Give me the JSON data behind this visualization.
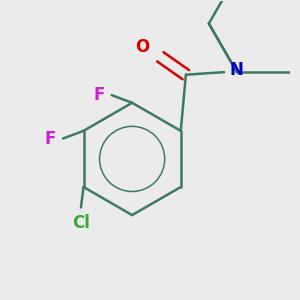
{
  "background_color": "#ebebeb",
  "bond_color": "#3d7a60",
  "atom_colors": {
    "O": "#dd0000",
    "N": "#0000cc",
    "F": "#cc22cc",
    "Cl": "#33aa33",
    "C": "#000000"
  },
  "figsize": [
    3.0,
    3.0
  ],
  "dpi": 100,
  "bond_lw": 1.8,
  "font_size": 12
}
